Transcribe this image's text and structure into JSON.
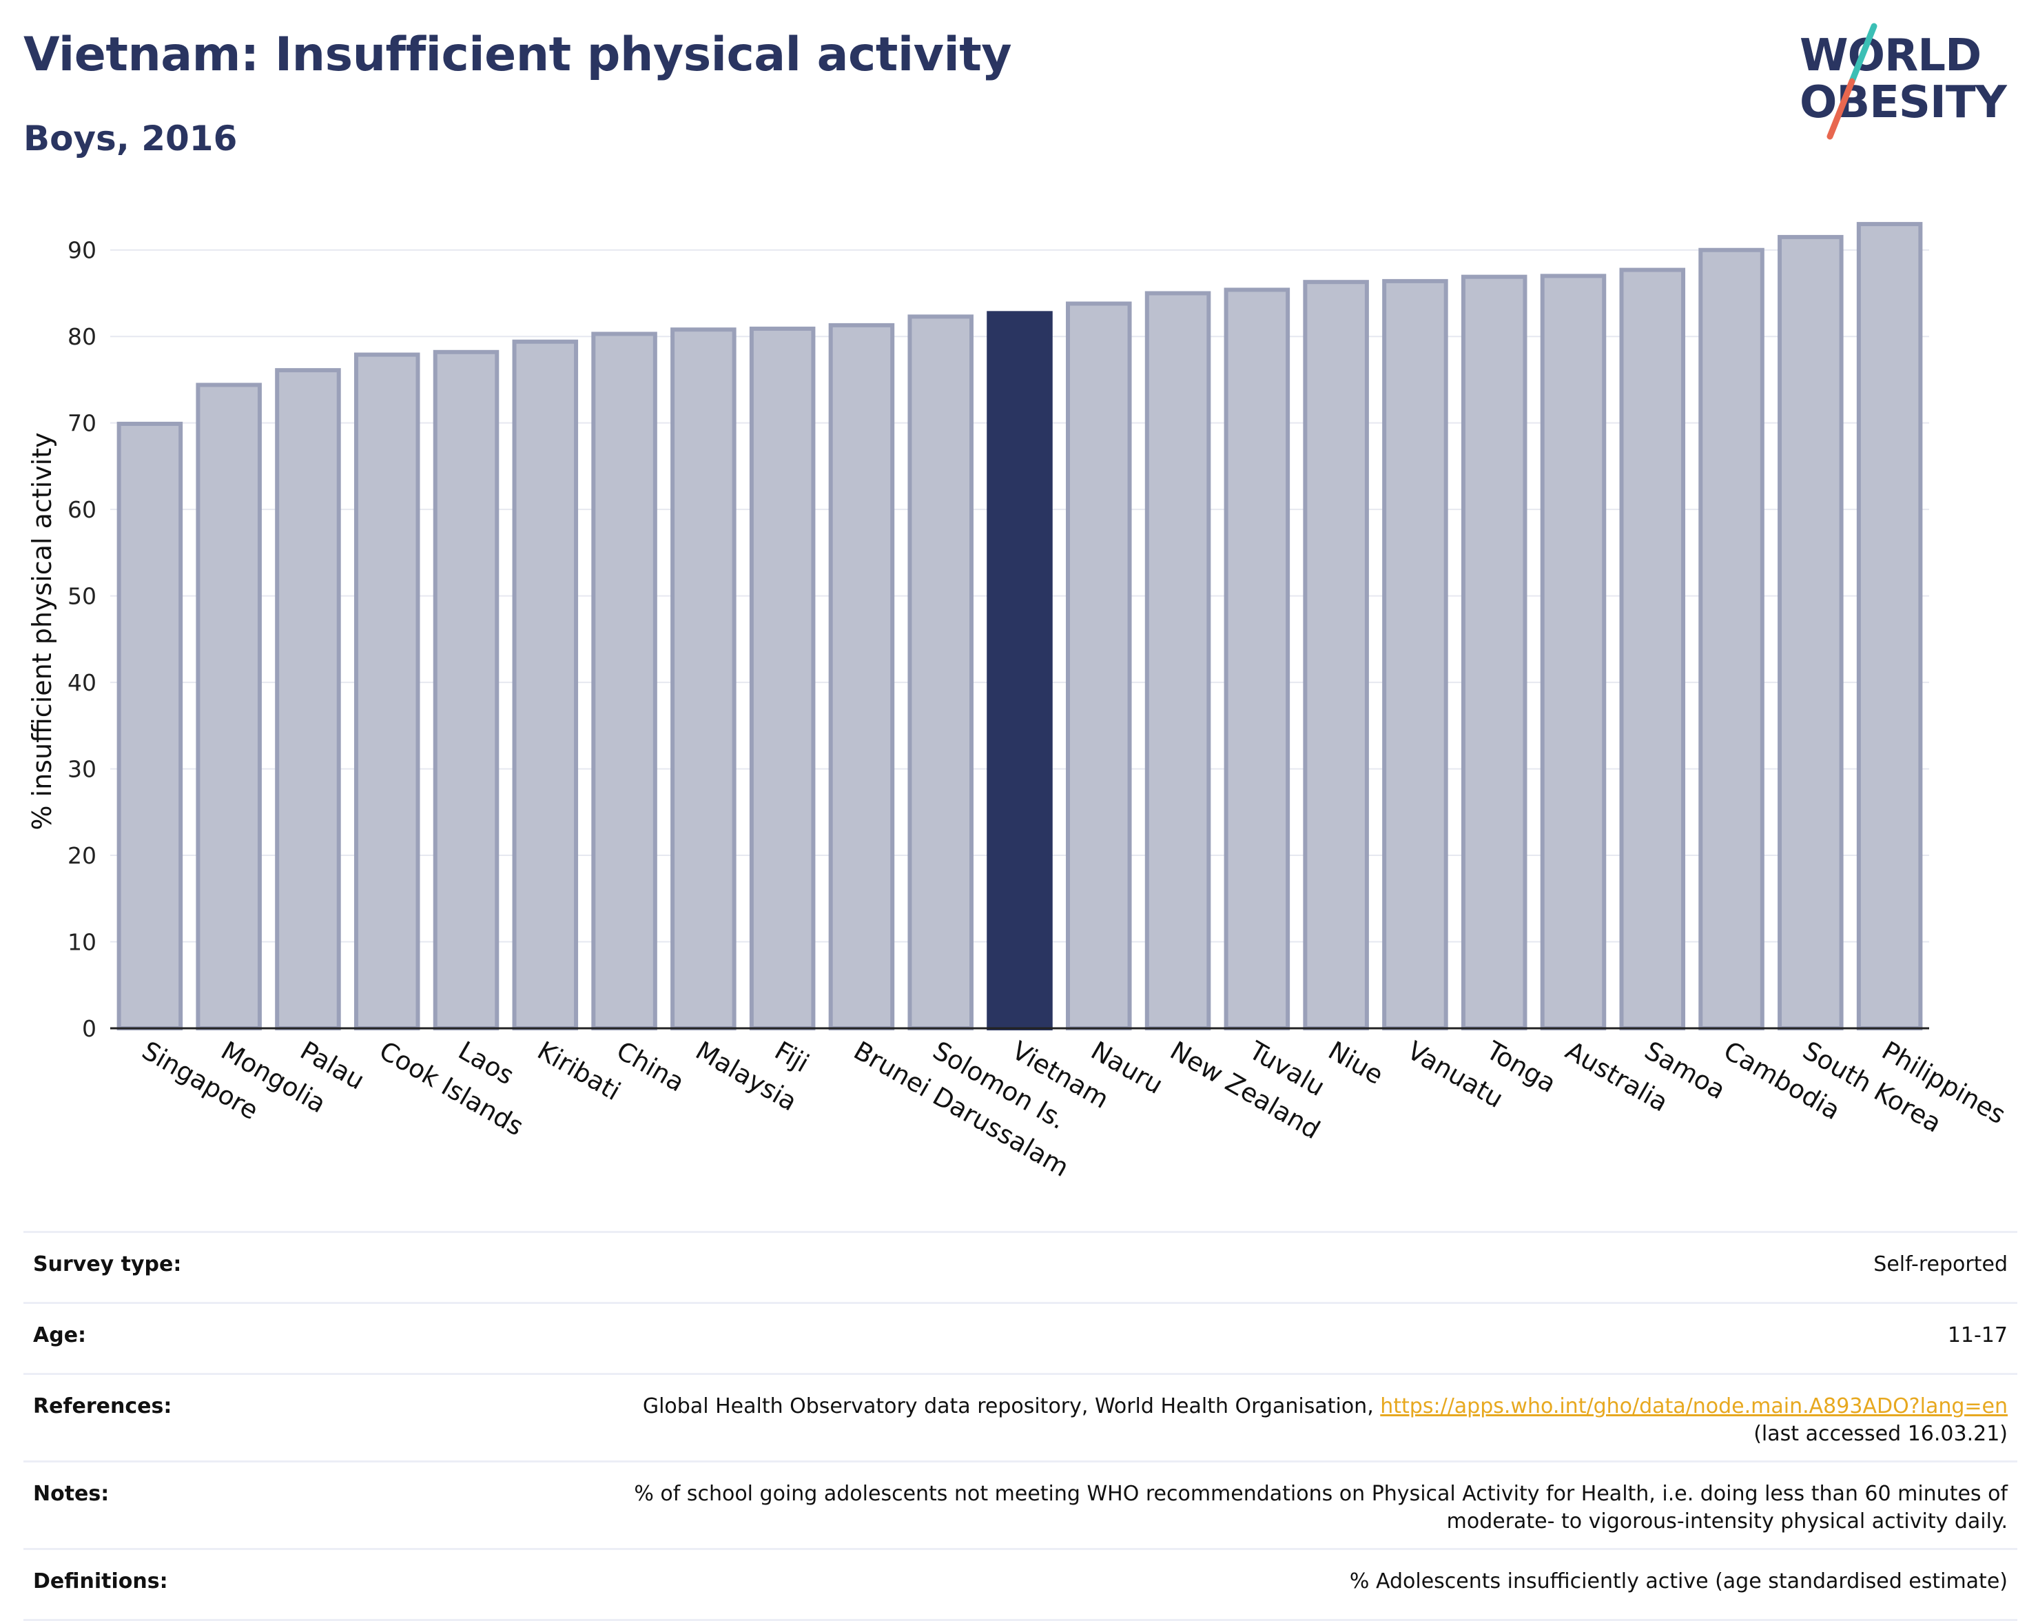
{
  "header": {
    "title": "Vietnam: Insufficient physical activity",
    "subtitle": "Boys, 2016"
  },
  "logo": {
    "line1": "WORLD",
    "line2": "OBESITY",
    "colors": {
      "text": "#2a3561",
      "slash_top": "#3bbfb5",
      "slash_bottom": "#e8674f"
    }
  },
  "chart_data": {
    "type": "bar",
    "ylabel": "% insufficient physical activity",
    "xlabel": "",
    "ylim": [
      0,
      95
    ],
    "yticks": [
      0,
      10,
      20,
      30,
      40,
      50,
      60,
      70,
      80,
      90
    ],
    "grid": true,
    "highlight": "Vietnam",
    "colors": {
      "bar": "#bcc0cf",
      "bar_edge": "#9aa0b9",
      "highlight": "#2a3561",
      "grid": "#e6e8f0"
    },
    "categories": [
      "Singapore",
      "Mongolia",
      "Palau",
      "Cook Islands",
      "Laos",
      "Kiribati",
      "China",
      "Malaysia",
      "Fiji",
      "Brunei Darussalam",
      "Solomon Is.",
      "Vietnam",
      "Nauru",
      "New Zealand",
      "Tuvalu",
      "Niue",
      "Vanuatu",
      "Tonga",
      "Australia",
      "Samoa",
      "Cambodia",
      "South Korea",
      "Philippines"
    ],
    "values": [
      69.9,
      74.4,
      76.1,
      77.9,
      78.2,
      79.4,
      80.3,
      80.8,
      80.9,
      81.3,
      82.3,
      82.7,
      83.8,
      85.0,
      85.4,
      86.3,
      86.4,
      86.9,
      87.0,
      87.7,
      90.0,
      91.5,
      93.0
    ]
  },
  "info": {
    "survey_type": {
      "label": "Survey type:",
      "value": "Self-reported"
    },
    "age": {
      "label": "Age:",
      "value": "11-17"
    },
    "references": {
      "label": "References:",
      "text": "Global Health Observatory data repository, World Health Organisation, ",
      "link": "https://apps.who.int/gho/data/node.main.A893ADO?lang=en",
      "accessed": "(last accessed 16.03.21)"
    },
    "notes": {
      "label": "Notes:",
      "line1": "% of school going adolescents not meeting WHO recommendations on Physical Activity for Health, i.e. doing less than 60 minutes of",
      "line2": "moderate- to vigorous-intensity physical activity daily."
    },
    "definitions": {
      "label": "Definitions:",
      "value": "% Adolescents insufficiently active (age standardised estimate)"
    }
  }
}
